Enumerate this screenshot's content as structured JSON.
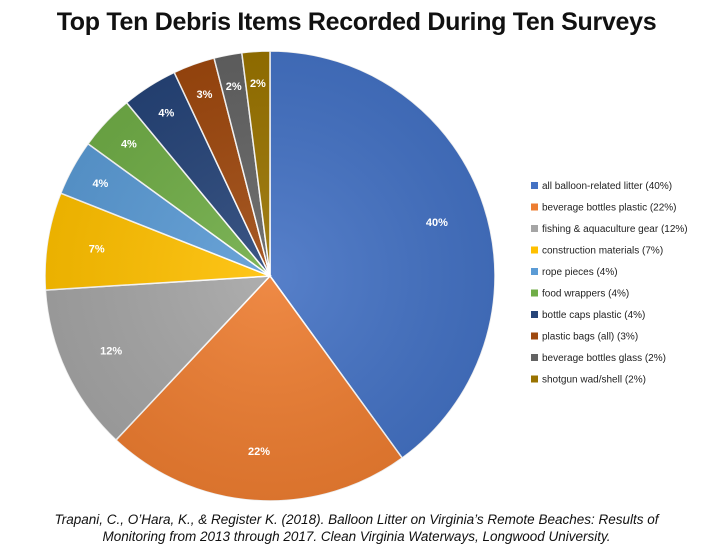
{
  "chart_data": {
    "type": "pie",
    "title": "Top Ten Debris Items Recorded During Ten Surveys",
    "labels": [
      "all balloon-related litter (40%)",
      "beverage bottles plastic (22%)",
      "fishing & aquaculture gear (12%)",
      "construction materials (7%)",
      "rope pieces (4%)",
      "food wrappers (4%)",
      "bottle caps plastic (4%)",
      "plastic bags (all) (3%)",
      "beverage bottles glass (2%)",
      "shotgun wad/shell (2%)"
    ],
    "values": [
      40,
      22,
      12,
      7,
      4,
      4,
      4,
      3,
      2,
      2
    ],
    "data_labels": [
      "40%",
      "22%",
      "12%",
      "7%",
      "4%",
      "4%",
      "4%",
      "3%",
      "2%",
      "2%"
    ],
    "colors": [
      "#4472c4",
      "#ed7d31",
      "#a5a5a5",
      "#ffc000",
      "#5b9bd5",
      "#70ad47",
      "#264478",
      "#9e480e",
      "#636363",
      "#997300"
    ],
    "legend_position": "right"
  },
  "caption": {
    "line1": "Trapani, C., O’Hara, K., & Register K. (2018). Balloon Litter on Virginia’s Remote Beaches: Results of",
    "line2": "Monitoring from 2013 through 2017. Clean Virginia Waterways, Longwood University."
  }
}
